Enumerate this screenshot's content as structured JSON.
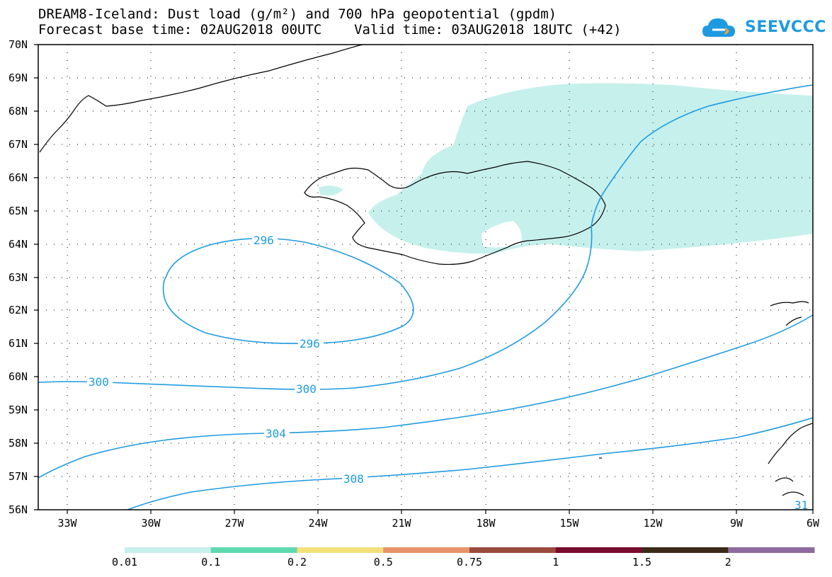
{
  "header": {
    "line1": "DREAM8-Iceland: Dust load (g/m²) and 700 hPa geopotential (gpdm)",
    "line2": "Forecast base time: 02AUG2018 00UTC    Valid time: 03AUG2018 18UTC (+42)",
    "logo_text": "SEEVCCC"
  },
  "map": {
    "lat_labels": [
      "70N",
      "69N",
      "68N",
      "67N",
      "66N",
      "65N",
      "64N",
      "63N",
      "62N",
      "61N",
      "60N",
      "59N",
      "58N",
      "57N",
      "56N"
    ],
    "lon_labels": [
      "33W",
      "30W",
      "27W",
      "24W",
      "21W",
      "18W",
      "15W",
      "12W",
      "9W",
      "6W"
    ],
    "contour_color": "#1E9BE0",
    "dust_fill_color": "#C6F0EC",
    "contour_labels": [
      "296",
      "296",
      "300",
      "300",
      "304",
      "308",
      "31"
    ]
  },
  "colorbar": {
    "colors": [
      "#C6F0EC",
      "#5FD9B0",
      "#F3E07A",
      "#E8936A",
      "#9B4B3D",
      "#7A0A2E",
      "#3B2A18",
      "#8E6A9E"
    ],
    "labels": [
      "0.01",
      "0.1",
      "0.2",
      "0.5",
      "0.75",
      "1",
      "1.5",
      "2"
    ]
  }
}
